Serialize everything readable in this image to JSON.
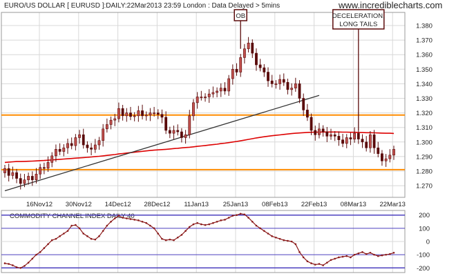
{
  "header": {
    "title": "EURO/US DOLLAR [ EURUSD ]:DAILY:22Mar2013 23:59 London : Data Delayed > 5mins",
    "watermark": "www.incrediblecharts.com"
  },
  "colors": {
    "candle_up": "#c0504d",
    "candle_down": "#5a0a0a",
    "moving_average": "#dd0000",
    "trendline": "#333333",
    "horizontal_levels": "#ff8c00",
    "cci_line": "#8b1a1a",
    "cci_bands": "#4b3fbf",
    "grid": "#d8d8d8"
  },
  "chart_data": [
    {
      "type": "candlestick",
      "title": "EURO/US DOLLAR [ EURUSD ]:DAILY:22Mar2013 23:59 London : Data Delayed > 5mins",
      "x_tick_labels": [
        "16Nov12",
        "30Nov12",
        "14Dec12",
        "28Dec12",
        "11Jan13",
        "25Jan13",
        "08Feb13",
        "22Feb13",
        "08Mar13",
        "22Mar13"
      ],
      "y_tick_labels": [
        "1.270",
        "1.280",
        "1.290",
        "1.300",
        "1.310",
        "1.320",
        "1.330",
        "1.340",
        "1.350",
        "1.360",
        "1.370",
        "1.380"
      ],
      "ylim": [
        1.262,
        1.389
      ],
      "grid": true,
      "close": [
        1.2818,
        1.277,
        1.279,
        1.275,
        1.2715,
        1.274,
        1.2765,
        1.274,
        1.278,
        1.2825,
        1.282,
        1.286,
        1.2905,
        1.295,
        1.2935,
        1.296,
        1.299,
        1.2975,
        1.303,
        1.305,
        1.298,
        1.296,
        1.295,
        1.298,
        1.301,
        1.309,
        1.312,
        1.315,
        1.316,
        1.323,
        1.318,
        1.32,
        1.3175,
        1.318,
        1.3215,
        1.318,
        1.3185,
        1.32,
        1.32,
        1.319,
        1.317,
        1.308,
        1.306,
        1.308,
        1.307,
        1.303,
        1.305,
        1.318,
        1.327,
        1.331,
        1.331,
        1.331,
        1.333,
        1.334,
        1.335,
        1.337,
        1.335,
        1.3435,
        1.35,
        1.348,
        1.358,
        1.364,
        1.368,
        1.361,
        1.353,
        1.351,
        1.348,
        1.342,
        1.34,
        1.34,
        1.343,
        1.341,
        1.336,
        1.337,
        1.34,
        1.33,
        1.322,
        1.317,
        1.308,
        1.305,
        1.309,
        1.307,
        1.304,
        1.305,
        1.304,
        1.3015,
        1.299,
        1.303,
        1.302,
        1.306,
        1.302,
        1.3,
        1.296,
        1.305,
        1.296,
        1.292,
        1.287,
        1.2885,
        1.291,
        1.295
      ],
      "moving_average": [
        1.286,
        1.2862,
        1.2864,
        1.2866,
        1.2866,
        1.2867,
        1.2868,
        1.2869,
        1.287,
        1.2872,
        1.2873,
        1.2875,
        1.2877,
        1.2879,
        1.2881,
        1.2883,
        1.2885,
        1.2887,
        1.2889,
        1.2891,
        1.2893,
        1.2895,
        1.2897,
        1.29,
        1.2902,
        1.2905,
        1.2908,
        1.2911,
        1.2914,
        1.2918,
        1.2921,
        1.2924,
        1.2927,
        1.293,
        1.2933,
        1.2936,
        1.2939,
        1.2942,
        1.2944,
        1.2946,
        1.2948,
        1.295,
        1.2952,
        1.2955,
        1.2957,
        1.296,
        1.2962,
        1.2964,
        1.2967,
        1.297,
        1.2973,
        1.2976,
        1.2979,
        1.2982,
        1.2985,
        1.2989,
        1.2992,
        1.2996,
        1.3,
        1.3004,
        1.3008,
        1.3013,
        1.3018,
        1.3023,
        1.3028,
        1.3032,
        1.3036,
        1.304,
        1.3043,
        1.3046,
        1.3049,
        1.3052,
        1.3055,
        1.3058,
        1.306,
        1.3062,
        1.3064,
        1.3066,
        1.3067,
        1.3068,
        1.3068,
        1.3069,
        1.3069,
        1.3069,
        1.3069,
        1.3069,
        1.3068,
        1.3068,
        1.3067,
        1.3067,
        1.3066,
        1.3065,
        1.3064,
        1.3064,
        1.3063,
        1.3062,
        1.3061,
        1.306,
        1.306,
        1.3059
      ],
      "trendline": {
        "start": [
          0,
          1.2665
        ],
        "end": [
          80,
          1.332
        ]
      },
      "horizontal_levels": [
        1.281,
        1.3185
      ],
      "annotations": [
        {
          "text": "OB",
          "index": 60
        },
        {
          "text": "DECELERATION,\nLONG TAILS",
          "index": 90
        }
      ]
    },
    {
      "type": "line",
      "title": "COMMODITY CHANNEL INDEX DAILY 40",
      "y_tick_labels": [
        "200",
        "100",
        "0",
        "-100",
        "-200"
      ],
      "ylim": [
        -235,
        235
      ],
      "bands": [
        200,
        100,
        -100,
        -200
      ],
      "grid": true,
      "values": [
        -165,
        -170,
        -180,
        -195,
        -200,
        -185,
        -160,
        -130,
        -100,
        -80,
        -50,
        -20,
        10,
        20,
        40,
        60,
        80,
        120,
        125,
        100,
        60,
        40,
        20,
        15,
        40,
        80,
        120,
        150,
        175,
        195,
        180,
        175,
        170,
        165,
        160,
        150,
        140,
        120,
        100,
        60,
        20,
        10,
        15,
        10,
        30,
        50,
        80,
        110,
        130,
        140,
        130,
        125,
        130,
        140,
        150,
        160,
        165,
        180,
        195,
        200,
        210,
        205,
        180,
        150,
        120,
        100,
        80,
        60,
        40,
        30,
        20,
        10,
        5,
        0,
        -20,
        -80,
        -120,
        -150,
        -165,
        -175,
        -170,
        -180,
        -160,
        -140,
        -130,
        -120,
        -115,
        -110,
        -120,
        -100,
        -90,
        -80,
        -95,
        -85,
        -100,
        -110,
        -105,
        -100,
        -95,
        -85
      ]
    }
  ]
}
